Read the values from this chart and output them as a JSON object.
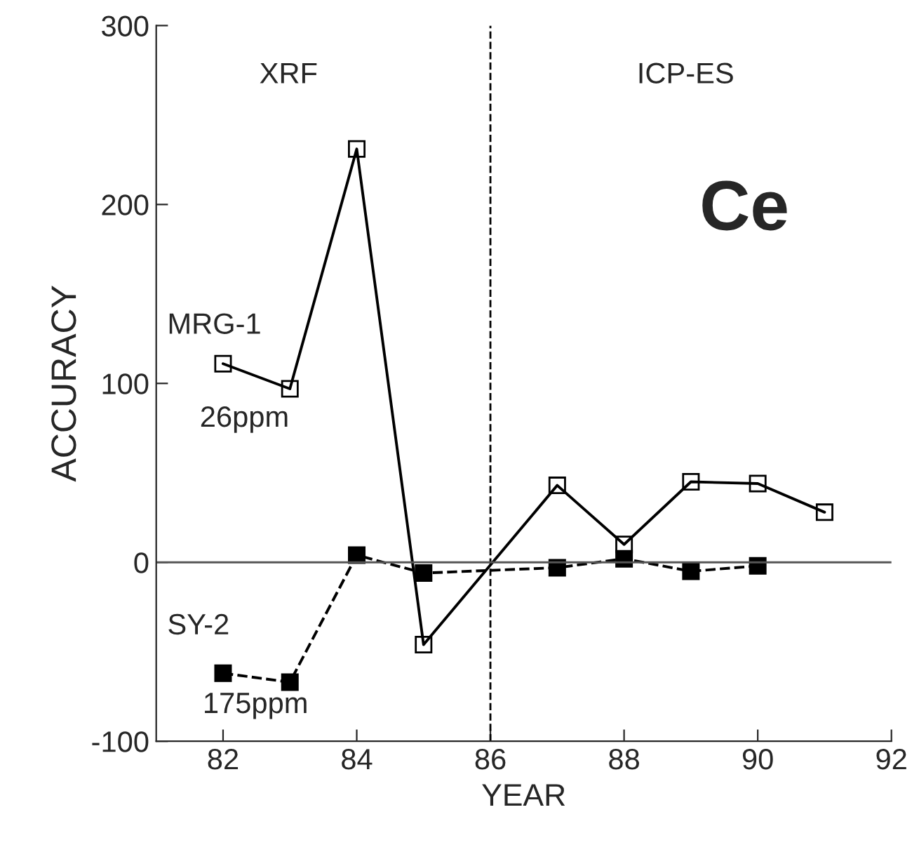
{
  "chart_data": {
    "type": "line",
    "xlabel": "YEAR",
    "ylabel": "ACCURACY",
    "xlim": [
      81,
      92
    ],
    "ylim": [
      -100,
      300
    ],
    "xticks": [
      82,
      84,
      86,
      88,
      90,
      92
    ],
    "yticks": [
      -100,
      0,
      100,
      200,
      300
    ],
    "marker": "square",
    "grid": false,
    "legend": false,
    "series": [
      {
        "name": "MRG-1",
        "color": "#000000",
        "line_style": "solid",
        "x": [
          82,
          83,
          84,
          85,
          87,
          88,
          89,
          90,
          91
        ],
        "values": [
          111,
          97,
          231,
          -46,
          43,
          10,
          45,
          44,
          28
        ]
      },
      {
        "name": "SY-2",
        "color": "#000000",
        "line_style": "dashed",
        "x": [
          82,
          83,
          84,
          85,
          87,
          88,
          89,
          90
        ],
        "values": [
          -62,
          -67,
          4,
          -6,
          -3,
          2,
          -5,
          -2
        ]
      }
    ],
    "ref_lines": [
      {
        "axis": "x",
        "value": 86,
        "line_style": "dashed",
        "color": "#000000"
      },
      {
        "axis": "y",
        "value": 0,
        "line_style": "solid",
        "color": "#555555"
      }
    ],
    "annotations": [
      "XRF",
      "ICP-ES",
      "Ce",
      "26ppm",
      "175ppm"
    ]
  }
}
